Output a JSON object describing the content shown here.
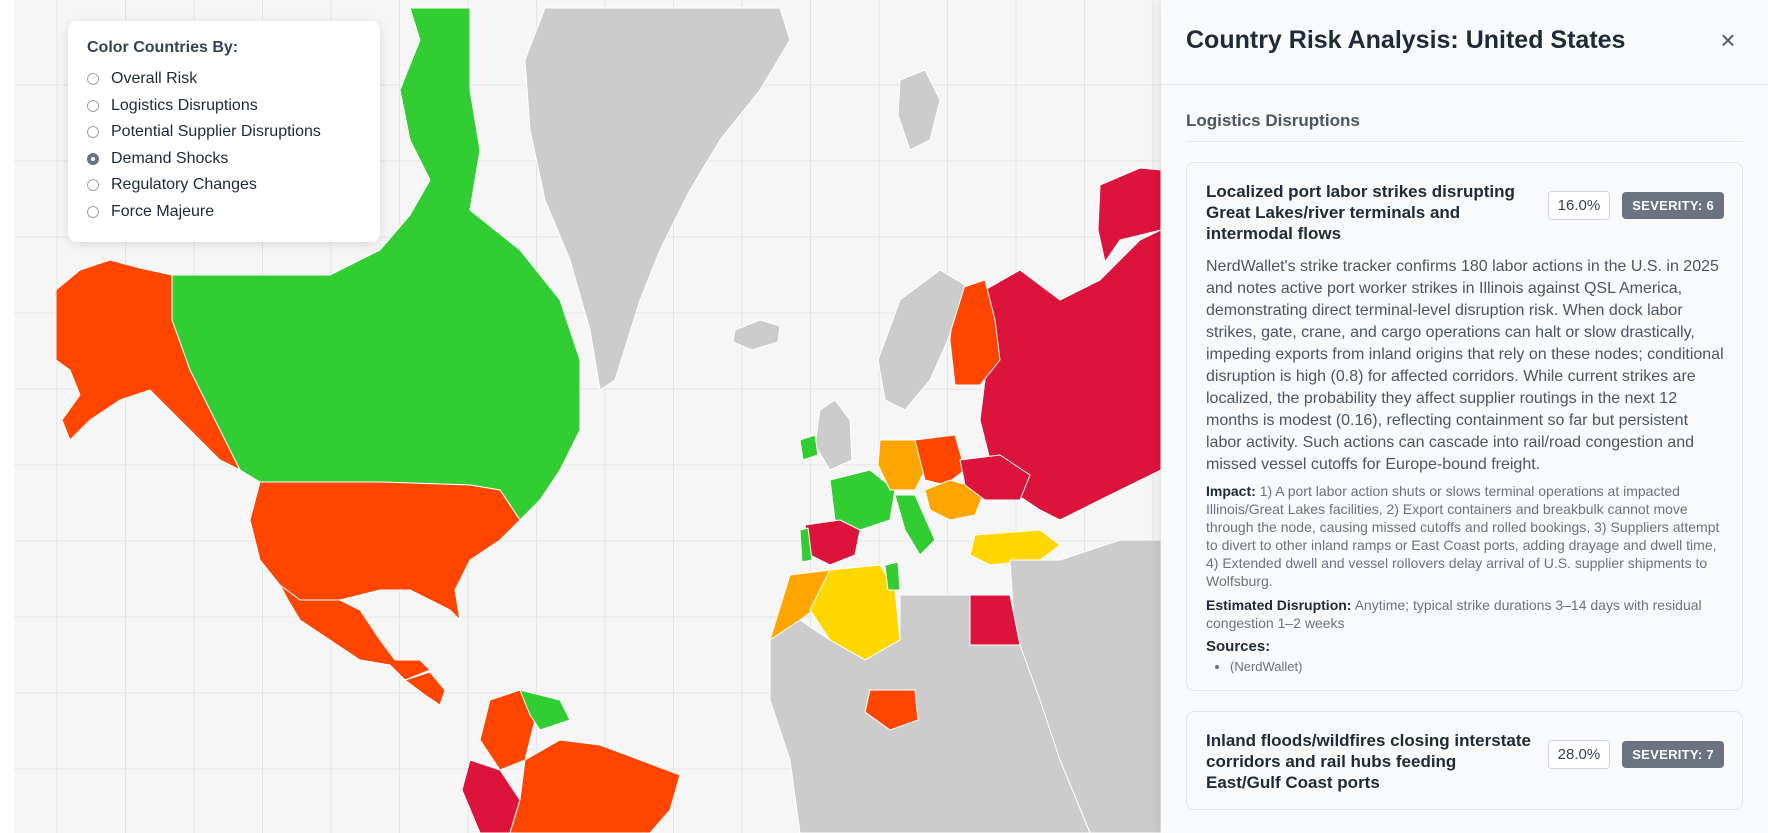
{
  "legend": {
    "title": "Color Countries By:",
    "options": [
      {
        "label": "Overall Risk",
        "selected": false
      },
      {
        "label": "Logistics Disruptions",
        "selected": false
      },
      {
        "label": "Potential Supplier Disruptions",
        "selected": false
      },
      {
        "label": "Demand Shocks",
        "selected": true
      },
      {
        "label": "Regulatory Changes",
        "selected": false
      },
      {
        "label": "Force Majeure",
        "selected": false
      }
    ]
  },
  "map": {
    "colors": {
      "critical": "#dc143c",
      "high": "#ff4500",
      "medium": "#ffa500",
      "elevated": "#ffd700",
      "low": "#32cd32",
      "nodata": "#cccccc",
      "ocean": "#f6f6f6",
      "grid": "#e4e4e4",
      "border": "#ffffff"
    },
    "country_levels": [
      {
        "region": "Alaska",
        "level": "high"
      },
      {
        "region": "Canada",
        "level": "low"
      },
      {
        "region": "Greenland",
        "level": "nodata"
      },
      {
        "region": "United States",
        "level": "high"
      },
      {
        "region": "Mexico",
        "level": "high"
      },
      {
        "region": "Russia",
        "level": "critical"
      },
      {
        "region": "Finland",
        "level": "high"
      },
      {
        "region": "Spain",
        "level": "critical"
      },
      {
        "region": "France",
        "level": "low"
      },
      {
        "region": "Germany",
        "level": "medium"
      },
      {
        "region": "Poland",
        "level": "high"
      },
      {
        "region": "Ukraine",
        "level": "critical"
      },
      {
        "region": "Turkey",
        "level": "elevated"
      },
      {
        "region": "Algeria",
        "level": "elevated"
      },
      {
        "region": "Egypt",
        "level": "critical"
      },
      {
        "region": "Nigeria",
        "level": "high"
      },
      {
        "region": "Brazil",
        "level": "high"
      },
      {
        "region": "Peru",
        "level": "critical"
      },
      {
        "region": "Colombia",
        "level": "high"
      },
      {
        "region": "Venezuela",
        "level": "low"
      }
    ]
  },
  "panel": {
    "title": "Country Risk Analysis: United States",
    "close_icon": "×",
    "section_title": "Logistics Disruptions",
    "risks": [
      {
        "title": "Localized port labor strikes disrupting Great Lakes/river terminals and intermodal flows",
        "probability": "16.0%",
        "severity": "SEVERITY: 6",
        "description": "NerdWallet's strike tracker confirms 180 labor actions in the U.S. in 2025 and notes active port worker strikes in Illinois against QSL America, demonstrating direct terminal-level disruption risk. When dock labor strikes, gate, crane, and cargo operations can halt or slow drastically, impeding exports from inland origins that rely on these nodes; conditional disruption is high (0.8) for affected corridors. While current strikes are localized, the probability they affect supplier routings in the next 12 months is modest (0.16), reflecting containment so far but persistent labor activity. Such actions can cascade into rail/road congestion and missed vessel cutoffs for Europe-bound freight.",
        "impact_label": "Impact:",
        "impact": "1) A port labor action shuts or slows terminal operations at impacted Illinois/Great Lakes facilities, 2) Export containers and breakbulk cannot move through the node, causing missed cutoffs and rolled bookings, 3) Suppliers attempt to divert to other inland ramps or East Coast ports, adding drayage and dwell time, 4) Extended dwell and vessel rollovers delay arrival of U.S. supplier shipments to Wolfsburg.",
        "estimated_label": "Estimated Disruption:",
        "estimated": "Anytime; typical strike durations 3–14 days with residual congestion 1–2 weeks",
        "sources_label": "Sources:",
        "sources": [
          "(NerdWallet)"
        ]
      },
      {
        "title": "Inland floods/wildfires closing interstate corridors and rail hubs feeding East/Gulf Coast ports",
        "probability": "28.0%",
        "severity": "SEVERITY: 7"
      }
    ]
  }
}
